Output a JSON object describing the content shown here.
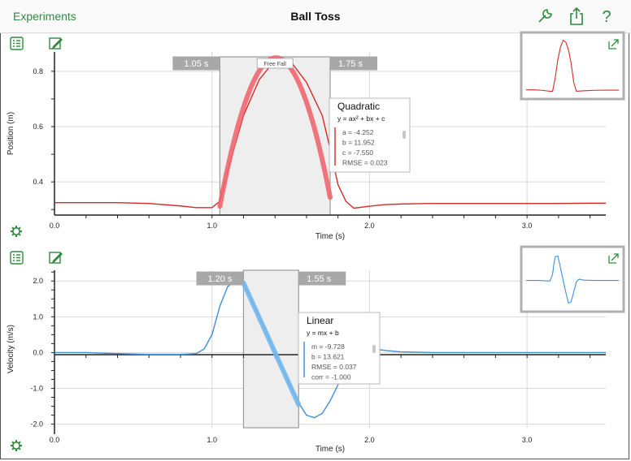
{
  "header": {
    "back_label": "Experiments",
    "title": "Ball Toss",
    "help_label": "?"
  },
  "colors": {
    "accent_green": "#2e8b3e",
    "position_series": "#d42a2a",
    "position_fit": "#f0666e",
    "velocity_series": "#3f8fd6",
    "velocity_fit": "#74b8ec"
  },
  "icons": [
    "list-icon",
    "pencil-icon",
    "gear-icon",
    "wrench-icon",
    "share-icon",
    "expand-icon"
  ],
  "chart_data": [
    {
      "type": "line",
      "ylabel": "Position (m)",
      "xlabel": "Time (s)",
      "xlim": [
        0,
        3.5
      ],
      "ylim": [
        0.28,
        0.87
      ],
      "x_ticks": [
        "0.0",
        "1.0",
        "2.0",
        "3.0"
      ],
      "y_ticks": [
        "0.4",
        "0.6",
        "0.8"
      ],
      "grid": true,
      "series": [
        {
          "x": [
            0.0,
            0.2,
            0.4,
            0.6,
            0.8,
            0.9,
            1.0,
            1.05,
            1.1,
            1.2,
            1.3,
            1.4,
            1.5,
            1.6,
            1.7,
            1.75,
            1.8,
            1.85,
            1.9,
            2.0,
            2.1,
            2.2,
            2.4,
            2.6,
            2.8,
            3.0,
            3.2,
            3.4,
            3.5
          ],
          "values": [
            0.325,
            0.325,
            0.325,
            0.322,
            0.313,
            0.307,
            0.307,
            0.33,
            0.44,
            0.64,
            0.77,
            0.84,
            0.835,
            0.76,
            0.64,
            0.52,
            0.39,
            0.33,
            0.305,
            0.312,
            0.318,
            0.32,
            0.322,
            0.322,
            0.322,
            0.322,
            0.322,
            0.323,
            0.323
          ]
        }
      ],
      "selection": {
        "start": 1.05,
        "end": 1.75,
        "start_label": "1.05 s",
        "end_label": "1.75 s",
        "region_label": "Free Fall"
      },
      "fit": {
        "name": "Quadratic",
        "equation": "y = ax² + bx + c",
        "params": [
          "a = -4.252",
          "b = 11.952",
          "c = -7.550",
          "RMSE = 0.023"
        ],
        "a": -4.252,
        "b": 11.952,
        "c": -7.55
      },
      "thumbnail": {
        "x": [
          0,
          0.3,
          0.6,
          0.9,
          1.0,
          1.1,
          1.2,
          1.3,
          1.4,
          1.5,
          1.6,
          1.7,
          1.8,
          1.9,
          2.2,
          2.6,
          3.0,
          3.5
        ],
        "values": [
          0.325,
          0.325,
          0.32,
          0.31,
          0.31,
          0.45,
          0.64,
          0.77,
          0.84,
          0.82,
          0.74,
          0.6,
          0.4,
          0.31,
          0.315,
          0.32,
          0.322,
          0.322
        ]
      }
    },
    {
      "type": "line",
      "ylabel": "Velocity (m/s)",
      "xlabel": "Time (s)",
      "xlim": [
        0,
        3.5
      ],
      "ylim": [
        -2.1,
        2.3
      ],
      "x_ticks": [
        "0.0",
        "1.0",
        "2.0",
        "3.0"
      ],
      "y_ticks": [
        "2.0",
        "1.0",
        "0.0",
        "-1.0",
        "-2.0"
      ],
      "grid": true,
      "series": [
        {
          "x": [
            0.0,
            0.2,
            0.4,
            0.6,
            0.8,
            0.9,
            0.95,
            1.0,
            1.05,
            1.1,
            1.15,
            1.2,
            1.3,
            1.4,
            1.5,
            1.55,
            1.6,
            1.65,
            1.7,
            1.75,
            1.8,
            1.85,
            1.9,
            1.95,
            2.0,
            2.1,
            2.2,
            2.4,
            2.6,
            2.8,
            3.0,
            3.2,
            3.5
          ],
          "values": [
            0.0,
            0.0,
            -0.03,
            -0.05,
            -0.05,
            -0.03,
            0.1,
            0.5,
            1.3,
            1.85,
            1.98,
            1.95,
            1.0,
            0.0,
            -0.95,
            -1.4,
            -1.75,
            -1.82,
            -1.7,
            -1.35,
            -0.9,
            -0.45,
            -0.1,
            0.08,
            0.12,
            0.06,
            0.02,
            0.0,
            0.0,
            0.0,
            0.0,
            0.0,
            0.0
          ]
        }
      ],
      "selection": {
        "start": 1.2,
        "end": 1.55,
        "start_label": "1.20 s",
        "end_label": "1.55 s"
      },
      "fit": {
        "name": "Linear",
        "equation": "y = mx + b",
        "params": [
          "m = -9.728",
          "b = 13.621",
          "RMSE = 0.037",
          "corr = -1.000"
        ],
        "m": -9.728,
        "b": 13.621
      },
      "thumbnail": {
        "x": [
          0,
          0.5,
          0.9,
          1.0,
          1.05,
          1.1,
          1.2,
          1.3,
          1.4,
          1.5,
          1.6,
          1.7,
          1.8,
          1.9,
          2.0,
          2.2,
          2.6,
          3.0,
          3.5
        ],
        "values": [
          0,
          0,
          -0.05,
          0.5,
          1.3,
          1.9,
          1.95,
          1.0,
          0.0,
          -0.95,
          -1.8,
          -1.7,
          -0.9,
          -0.1,
          0.1,
          0.02,
          0,
          0,
          0
        ]
      }
    }
  ]
}
